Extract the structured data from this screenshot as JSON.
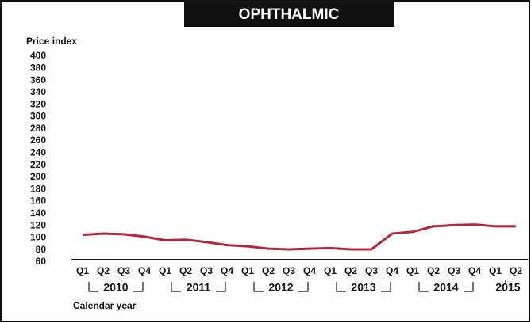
{
  "chart_data": {
    "type": "line",
    "title": "OPHTHALMIC",
    "y_label": "Price index",
    "x_label": "Calendar year",
    "categories": [
      "Q1",
      "Q2",
      "Q3",
      "Q4",
      "Q1",
      "Q2",
      "Q3",
      "Q4",
      "Q1",
      "Q2",
      "Q3",
      "Q4",
      "Q1",
      "Q2",
      "Q3",
      "Q4",
      "Q1",
      "Q2",
      "Q3",
      "Q4",
      "Q1",
      "Q2"
    ],
    "years": [
      "2010",
      "2011",
      "2012",
      "2013",
      "2014",
      "2015"
    ],
    "series": [
      {
        "name": "Price index",
        "color": "#b5263b",
        "values": [
          105,
          107,
          106,
          102,
          96,
          97,
          93,
          88,
          86,
          82,
          81,
          82,
          83,
          81,
          81,
          107,
          110,
          119,
          121,
          122,
          119,
          119
        ]
      }
    ],
    "ylim": [
      60,
      400
    ],
    "yticks": [
      60,
      80,
      100,
      120,
      140,
      160,
      180,
      200,
      220,
      240,
      260,
      280,
      300,
      320,
      340,
      360,
      380,
      400
    ]
  }
}
